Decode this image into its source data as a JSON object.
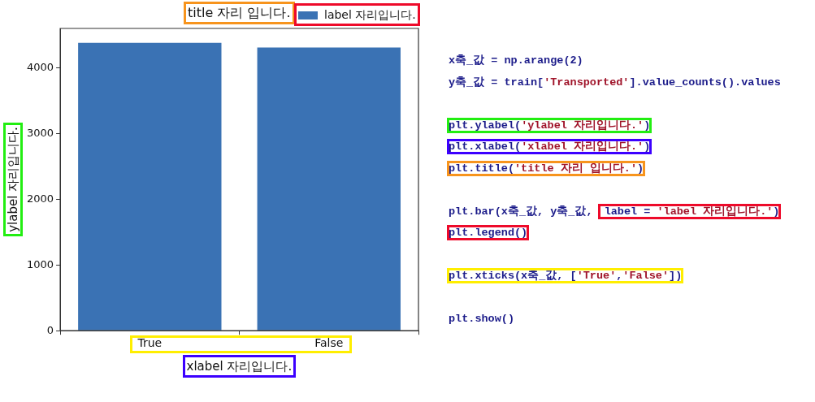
{
  "chart_data": {
    "type": "bar",
    "title": "title 자리 입니다.",
    "xlabel": "xlabel 자리입니다.",
    "ylabel": "ylabel 자리입니다.",
    "categories": [
      "True",
      "False"
    ],
    "series": [
      {
        "name": "label 자리입니다.",
        "color": "#3a72b4",
        "values": [
          4380,
          4310
        ]
      }
    ],
    "ylim": [
      0,
      4600
    ],
    "yticks": [
      0,
      1000,
      2000,
      3000,
      4000
    ],
    "grid": false,
    "legend": "top right",
    "annotations": [
      "x축_값 = np.arange(2)",
      "y축_값 = train['Transported'].value_counts().values",
      "plt.ylabel('ylabel 자리입니다.')",
      "plt.xlabel('xlabel 자리입니다.')",
      "plt.title('title 자리 입니다.')",
      "plt.bar(x축_값, y축_값, label = 'label 자리입니다.')",
      "plt.legend()",
      "plt.xticks(x축_값, ['True','False'])",
      "plt.show()"
    ]
  }
}
